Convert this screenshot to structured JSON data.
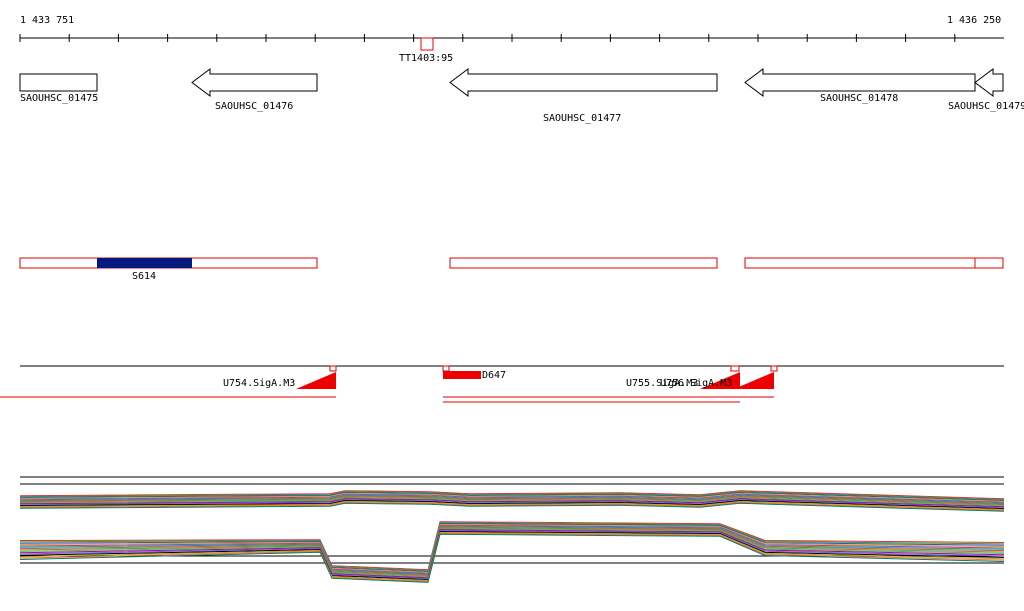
{
  "ruler": {
    "start": "1 433 751",
    "end": "1 436 250",
    "marker": "TT1403:95"
  },
  "genes": [
    {
      "label": "SAOUHSC_01475"
    },
    {
      "label": "SAOUHSC_01476"
    },
    {
      "label": "SAOUHSC_01477"
    },
    {
      "label": "SAOUHSC_01478"
    },
    {
      "label": "SAOUHSC_01479"
    }
  ],
  "regions": {
    "label": "S614"
  },
  "features": [
    {
      "label": "U754.SigA.M3"
    },
    {
      "label": "D647"
    },
    {
      "label": "U755.SigA.M3"
    },
    {
      "label": "U756.SigA.M3"
    }
  ]
}
